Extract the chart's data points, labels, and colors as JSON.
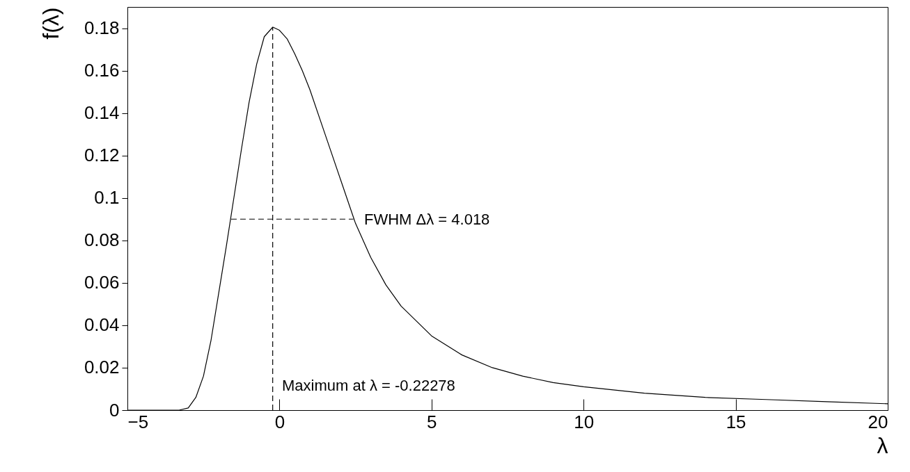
{
  "chart_data": {
    "type": "line",
    "xlabel": "λ",
    "ylabel": "f(λ)",
    "xlim": [
      -5,
      20
    ],
    "ylim": [
      0,
      0.19
    ],
    "xticks": [
      -5,
      0,
      5,
      10,
      15,
      20
    ],
    "yticks": [
      0,
      0.02,
      0.04,
      0.06,
      0.08,
      0.1,
      0.12,
      0.14,
      0.16,
      0.18
    ],
    "grid": false,
    "marker": "none",
    "x": [
      -5,
      -4,
      -3.5,
      -3.3,
      -3,
      -2.75,
      -2.5,
      -2.25,
      -2,
      -1.75,
      -1.5,
      -1.25,
      -1,
      -0.75,
      -0.5,
      -0.22,
      0,
      0.25,
      0.5,
      0.75,
      1,
      1.5,
      2,
      2.5,
      3,
      3.5,
      4,
      5,
      6,
      7,
      8,
      9,
      10,
      12,
      14,
      16,
      18,
      20
    ],
    "series": [
      {
        "color": "#000000",
        "line_style": "solid",
        "values": [
          0,
          0,
          0,
          0,
          0.001,
          0.006,
          0.016,
          0.033,
          0.055,
          0.077,
          0.1,
          0.123,
          0.145,
          0.163,
          0.176,
          0.1805,
          0.179,
          0.175,
          0.168,
          0.16,
          0.151,
          0.13,
          0.109,
          0.088,
          0.072,
          0.059,
          0.049,
          0.035,
          0.026,
          0.02,
          0.016,
          0.013,
          0.011,
          0.008,
          0.006,
          0.005,
          0.004,
          0.003
        ]
      },
      {
        "color": "#000000",
        "line_style": "dashed",
        "x": [
          -0.22278,
          -0.22278
        ],
        "values": [
          0,
          0.1805
        ]
      },
      {
        "color": "#000000",
        "line_style": "dashed",
        "x": [
          -1.59,
          2.43
        ],
        "values": [
          0.09,
          0.09
        ]
      }
    ],
    "annotations": [
      "FWHM Δλ = 4.018",
      "Maximum at λ = -0.22278"
    ]
  }
}
